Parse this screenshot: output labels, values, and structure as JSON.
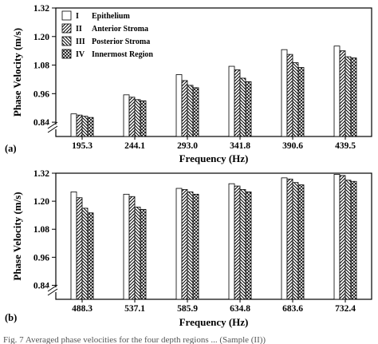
{
  "legend": [
    {
      "numeral": "I",
      "name": "Epithelium",
      "pattern": "plain"
    },
    {
      "numeral": "II",
      "name": "Anterior Stroma",
      "pattern": "diag-right"
    },
    {
      "numeral": "III",
      "name": "Posterior Stroma",
      "pattern": "diag-left"
    },
    {
      "numeral": "IV",
      "name": "Innermost Region",
      "pattern": "cross"
    }
  ],
  "caption": "Fig. 7 Averaged phase velocities for the four depth regions ... (Sample (II))",
  "chart_data": [
    {
      "type": "bar",
      "panel_label": "(a)",
      "xlabel": "Frequency (Hz)",
      "ylabel": "Phase Velocity (m/s)",
      "ylim": [
        0.78,
        1.32
      ],
      "yticks": [
        "0.84",
        "0.96",
        "1.08",
        "1.20",
        "1.32"
      ],
      "axis_break": true,
      "grid": false,
      "legend_position": "top-left",
      "categories": [
        "195.3",
        "244.1",
        "293.0",
        "341.8",
        "390.6",
        "439.5"
      ],
      "series": [
        {
          "name": "I Epithelium",
          "values": [
            0.875,
            0.955,
            1.04,
            1.075,
            1.145,
            1.16
          ]
        },
        {
          "name": "II Anterior Stroma",
          "values": [
            0.87,
            0.945,
            1.015,
            1.06,
            1.125,
            1.14
          ]
        },
        {
          "name": "III Posterior Stroma",
          "values": [
            0.865,
            0.935,
            0.995,
            1.025,
            1.09,
            1.115
          ]
        },
        {
          "name": "IV Innermost Region",
          "values": [
            0.86,
            0.93,
            0.985,
            1.01,
            1.07,
            1.11
          ]
        }
      ]
    },
    {
      "type": "bar",
      "panel_label": "(b)",
      "xlabel": "Frequency (Hz)",
      "ylabel": "Phase Velocity (m/s)",
      "ylim": [
        0.78,
        1.32
      ],
      "yticks": [
        "0.84",
        "0.96",
        "1.08",
        "1.20",
        "1.32"
      ],
      "axis_break": true,
      "grid": false,
      "legend_position": "none",
      "categories": [
        "488.3",
        "537.1",
        "585.9",
        "634.8",
        "683.6",
        "732.4"
      ],
      "series": [
        {
          "name": "I Epithelium",
          "values": [
            1.24,
            1.23,
            1.255,
            1.275,
            1.3,
            1.315
          ]
        },
        {
          "name": "II Anterior Stroma",
          "values": [
            1.215,
            1.22,
            1.25,
            1.265,
            1.295,
            1.31
          ]
        },
        {
          "name": "III Posterior Stroma",
          "values": [
            1.17,
            1.175,
            1.24,
            1.25,
            1.28,
            1.29
          ]
        },
        {
          "name": "IV Innermost Region",
          "values": [
            1.15,
            1.165,
            1.23,
            1.24,
            1.27,
            1.285
          ]
        }
      ]
    }
  ]
}
